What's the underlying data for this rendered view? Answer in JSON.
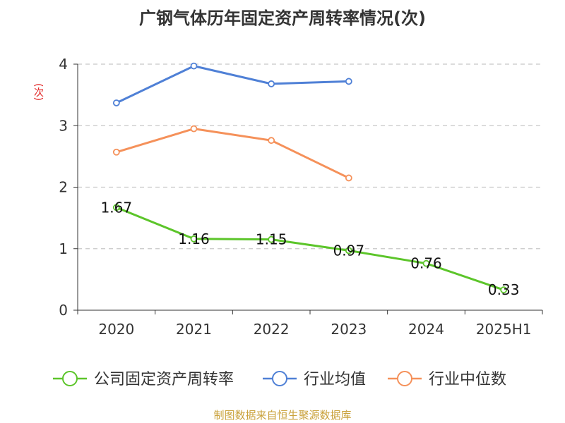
{
  "chart_data": {
    "type": "line",
    "title": "广钢气体历年固定资产周转率情况(次)",
    "ylabel": "(次)",
    "source": "制图数据来自恒生聚源数据库",
    "categories": [
      "2020",
      "2021",
      "2022",
      "2023",
      "2024",
      "2025H1"
    ],
    "ylim": [
      0,
      4
    ],
    "yticks": [
      "0",
      "1",
      "2",
      "3",
      "4"
    ],
    "grid": true,
    "legend_position": "bottom",
    "series": [
      {
        "name": "公司固定资产周转率",
        "color": "#5cc52a",
        "values": [
          1.67,
          1.16,
          1.15,
          0.97,
          0.76,
          0.33
        ],
        "labels": [
          "1.67",
          "1.16",
          "1.15",
          "0.97",
          "0.76",
          "0.33"
        ]
      },
      {
        "name": "行业均值",
        "color": "#4f80d6",
        "values": [
          3.37,
          3.97,
          3.68,
          3.72,
          null,
          null
        ]
      },
      {
        "name": "行业中位数",
        "color": "#f5915a",
        "values": [
          2.57,
          2.95,
          2.76,
          2.15,
          null,
          null
        ]
      }
    ]
  }
}
